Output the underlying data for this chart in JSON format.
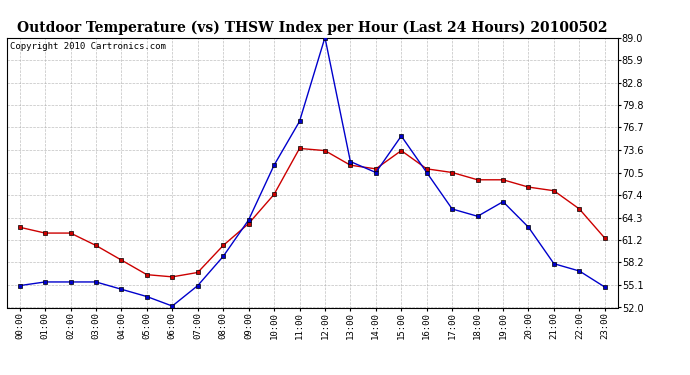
{
  "title": "Outdoor Temperature (vs) THSW Index per Hour (Last 24 Hours) 20100502",
  "copyright": "Copyright 2010 Cartronics.com",
  "hours": [
    "00:00",
    "01:00",
    "02:00",
    "03:00",
    "04:00",
    "05:00",
    "06:00",
    "07:00",
    "08:00",
    "09:00",
    "10:00",
    "11:00",
    "12:00",
    "13:00",
    "14:00",
    "15:00",
    "16:00",
    "17:00",
    "18:00",
    "19:00",
    "20:00",
    "21:00",
    "22:00",
    "23:00"
  ],
  "temp_red": [
    63.0,
    62.2,
    62.2,
    60.5,
    58.5,
    56.5,
    56.2,
    56.8,
    60.5,
    63.5,
    67.5,
    73.8,
    73.5,
    71.5,
    71.0,
    73.5,
    71.0,
    70.5,
    69.5,
    69.5,
    68.5,
    68.0,
    65.5,
    61.5
  ],
  "thsw_blue": [
    55.0,
    55.5,
    55.5,
    55.5,
    54.5,
    53.5,
    52.2,
    55.0,
    59.0,
    64.0,
    71.5,
    77.5,
    89.0,
    72.0,
    70.5,
    75.5,
    70.5,
    65.5,
    64.5,
    66.5,
    63.0,
    58.0,
    57.0,
    54.8
  ],
  "ylim_min": 52.0,
  "ylim_max": 89.0,
  "yticks": [
    52.0,
    55.1,
    58.2,
    61.2,
    64.3,
    67.4,
    70.5,
    73.6,
    76.7,
    79.8,
    82.8,
    85.9,
    89.0
  ],
  "red_color": "#cc0000",
  "blue_color": "#0000cc",
  "bg_color": "#ffffff",
  "grid_color": "#b0b0b0",
  "title_fontsize": 10,
  "copyright_fontsize": 6.5
}
